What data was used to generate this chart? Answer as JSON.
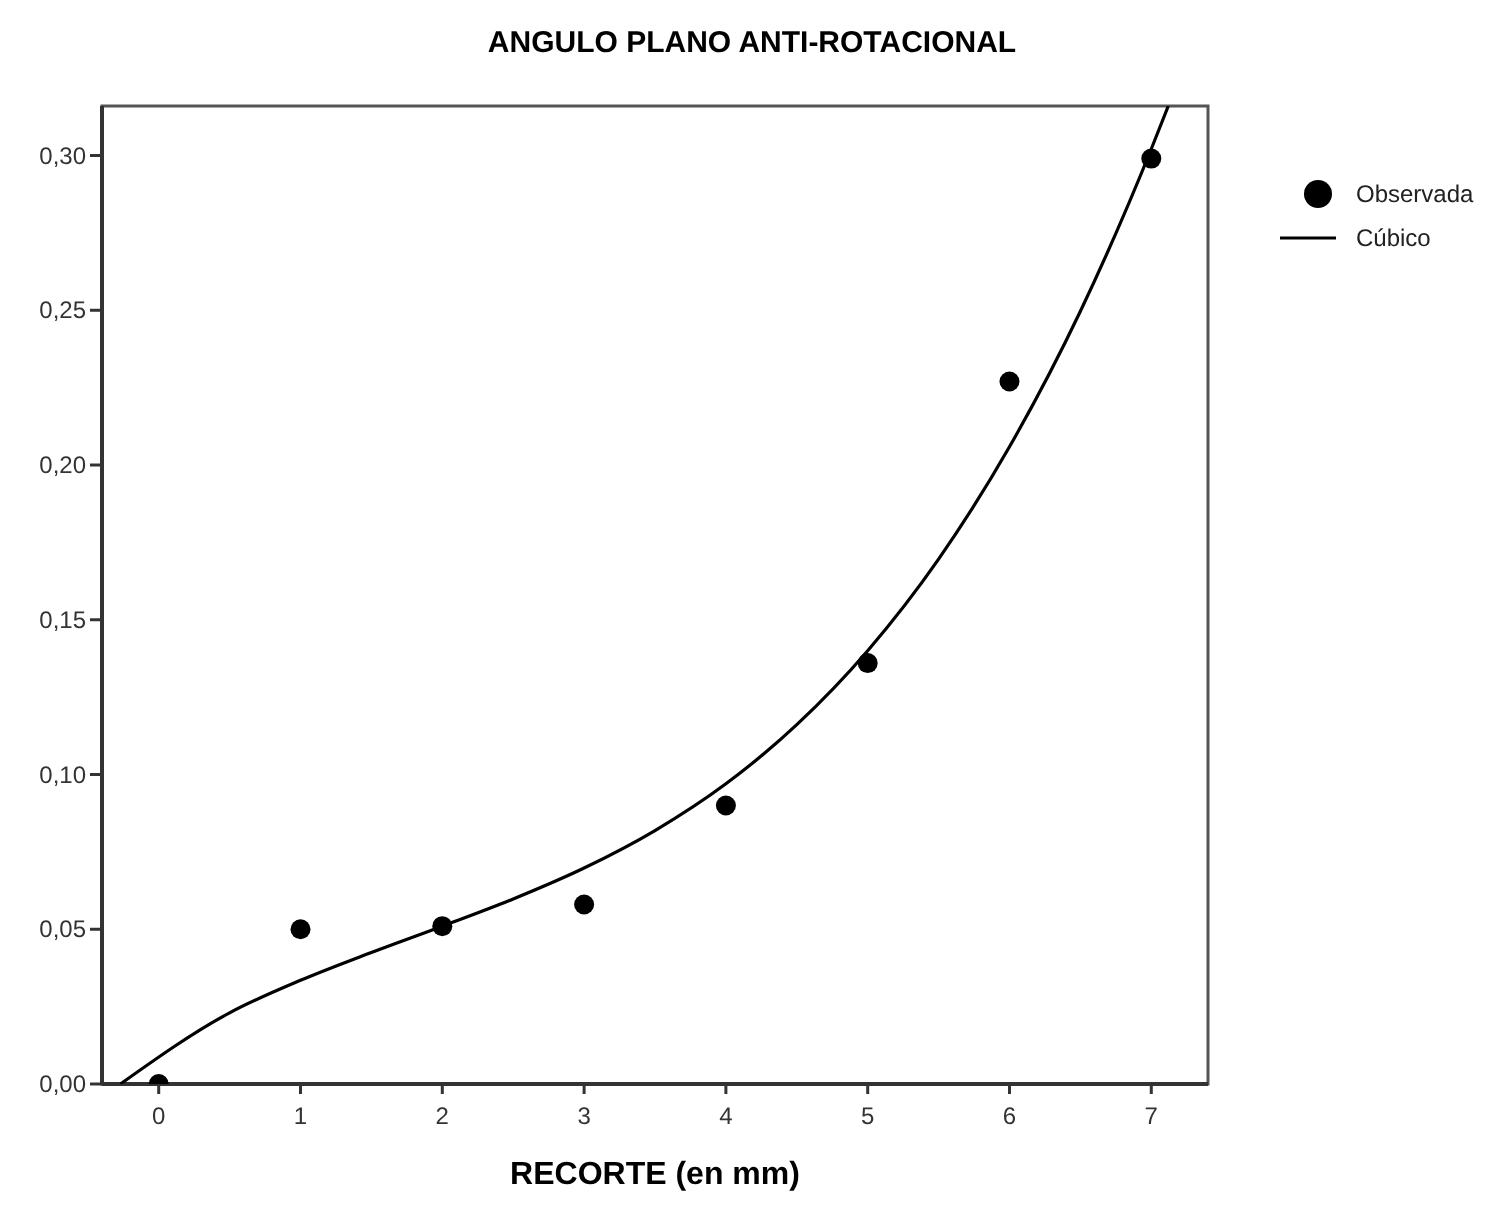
{
  "chart_data": {
    "type": "scatter",
    "title": "ANGULO PLANO ANTI-ROTACIONAL",
    "xlabel": "RECORTE (en mm)",
    "xlim": [
      -0.4,
      7.4
    ],
    "ylim": [
      0,
      0.316
    ],
    "xticks": [
      0,
      1,
      2,
      3,
      4,
      5,
      6,
      7
    ],
    "yticks": [
      {
        "value": 0,
        "label": "0,00"
      },
      {
        "value": 0.05,
        "label": "0,05"
      },
      {
        "value": 0.1,
        "label": "0,10"
      },
      {
        "value": 0.15,
        "label": "0,15"
      },
      {
        "value": 0.2,
        "label": "0,20"
      },
      {
        "value": 0.25,
        "label": "0,25"
      },
      {
        "value": 0.3,
        "label": "0,30"
      }
    ],
    "grid": false,
    "legend": "right",
    "series": [
      {
        "name": "Observada",
        "marker": "circle",
        "color": "#000000",
        "x": [
          0,
          1,
          2,
          3,
          4,
          5,
          6,
          7
        ],
        "values": [
          0,
          0.05,
          0.051,
          0.058,
          0.09,
          0.136,
          0.227,
          0.299
        ]
      },
      {
        "name": "Cúbico",
        "type": "line",
        "color": "#000000",
        "line_style": "solid",
        "x": [
          -0.27,
          0.5,
          1,
          1.5,
          2,
          2.5,
          3,
          3.5,
          4,
          4.5,
          5,
          5.5,
          6,
          6.5,
          7,
          7.12
        ],
        "values": [
          0,
          0.023,
          0.0335,
          0.0425,
          0.051,
          0.0598,
          0.0698,
          0.0819,
          0.097,
          0.1161,
          0.14,
          0.1696,
          0.2059,
          0.2497,
          0.3021,
          0.316
        ]
      }
    ]
  }
}
